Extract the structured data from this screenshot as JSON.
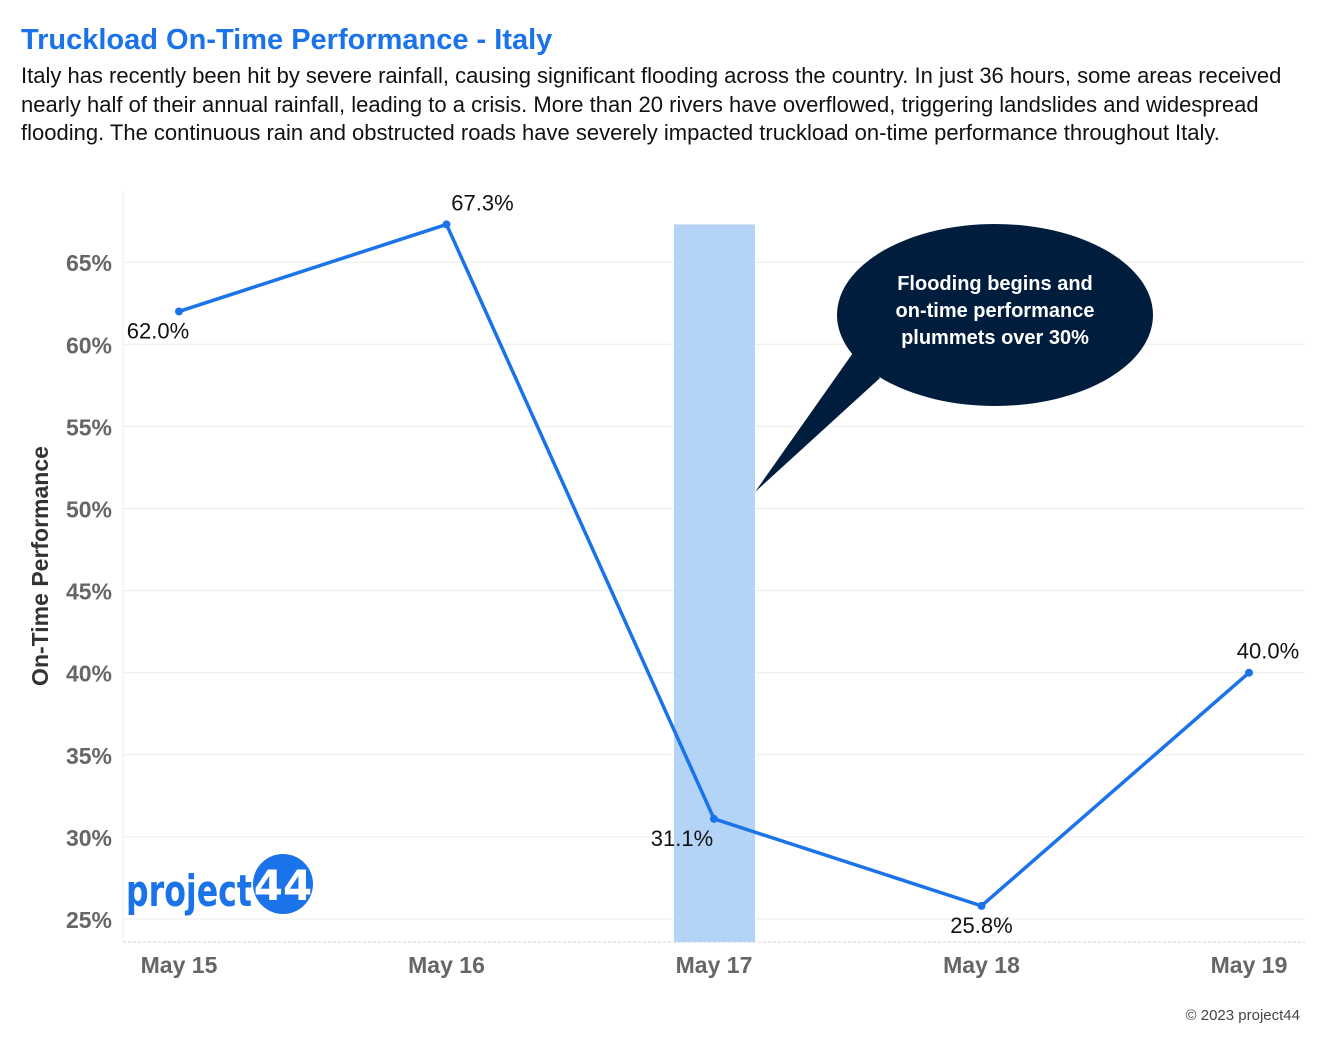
{
  "title": "Truckload On-Time Performance - Italy",
  "subtitle": "Italy has recently been hit by severe rainfall, causing significant flooding across the country. In just 36 hours, some areas received nearly half of their annual rainfall, leading to a crisis. More than 20 rivers have overflowed, triggering landslides and widespread flooding. The continuous rain and obstructed roads have severely impacted truckload on-time performance throughout Italy.",
  "copyright": "© 2023 project44",
  "logo": {
    "text": "project44"
  },
  "colors": {
    "title": "#1a73e8",
    "line": "#1a73e8",
    "highlight": "#b3d3f7",
    "callout": "#001d3d",
    "axis_text": "#666666"
  },
  "chart_data": {
    "type": "line",
    "categories": [
      "May 15",
      "May 16",
      "May 17",
      "May 18",
      "May 19"
    ],
    "series": [
      {
        "values": [
          62.0,
          67.3,
          31.1,
          25.8,
          40.0
        ]
      }
    ],
    "data_labels": [
      "62.0%",
      "67.3%",
      "31.1%",
      "25.8%",
      "40.0%"
    ],
    "ylabel": "On-Time Performance",
    "yticks": [
      "25%",
      "30%",
      "35%",
      "40%",
      "45%",
      "50%",
      "55%",
      "60%",
      "65%"
    ],
    "ylim": [
      24.3,
      68.7
    ],
    "grid": true,
    "highlight_category": "May 17",
    "annotation": "Flooding begins and on-time performance plummets over 30%"
  }
}
